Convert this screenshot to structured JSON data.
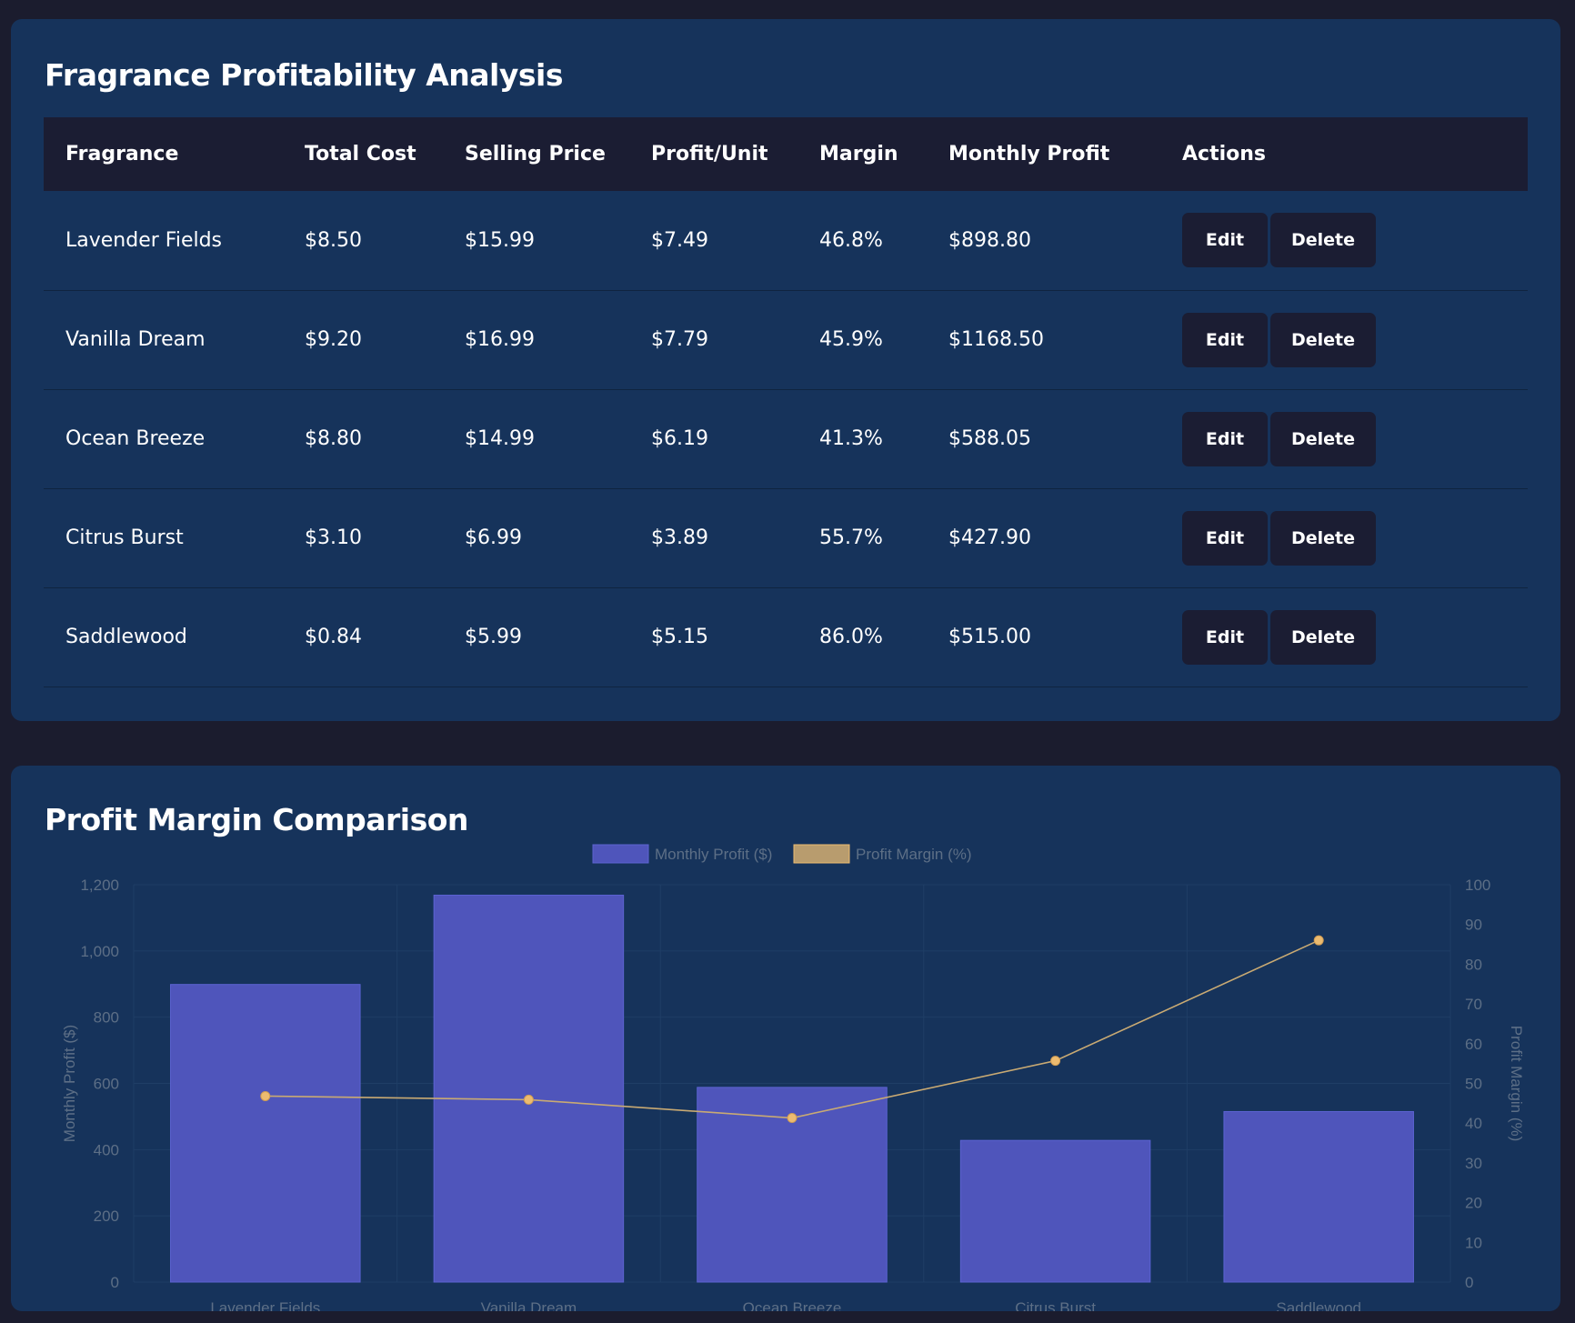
{
  "table_section": {
    "title": "Fragrance Profitability Analysis",
    "columns": [
      "Fragrance",
      "Total Cost",
      "Selling Price",
      "Profit/Unit",
      "Margin",
      "Monthly Profit",
      "Actions"
    ],
    "rows": [
      {
        "name": "Lavender Fields",
        "cost": "$8.50",
        "price": "$15.99",
        "profit_unit": "$7.49",
        "margin": "46.8%",
        "monthly": "$898.80"
      },
      {
        "name": "Vanilla Dream",
        "cost": "$9.20",
        "price": "$16.99",
        "profit_unit": "$7.79",
        "margin": "45.9%",
        "monthly": "$1168.50"
      },
      {
        "name": "Ocean Breeze",
        "cost": "$8.80",
        "price": "$14.99",
        "profit_unit": "$6.19",
        "margin": "41.3%",
        "monthly": "$588.05"
      },
      {
        "name": "Citrus Burst",
        "cost": "$3.10",
        "price": "$6.99",
        "profit_unit": "$3.89",
        "margin": "55.7%",
        "monthly": "$427.90"
      },
      {
        "name": "Saddlewood",
        "cost": "$0.84",
        "price": "$5.99",
        "profit_unit": "$5.15",
        "margin": "86.0%",
        "monthly": "$515.00"
      }
    ],
    "edit_label": "Edit",
    "delete_label": "Delete"
  },
  "chart_section": {
    "title": "Profit Margin Comparison"
  },
  "colors": {
    "page_bg": "#1b1c2e",
    "card_bg": "#16335b",
    "header_bg": "#1b1d33",
    "positive": "#4bc395",
    "bar": "#4f55bb",
    "line": "#c9aa73",
    "point": "#ecbb70"
  },
  "chart_data": {
    "type": "bar",
    "categories": [
      "Lavender Fields",
      "Vanilla Dream",
      "Ocean Breeze",
      "Citrus Burst",
      "Saddlewood"
    ],
    "series": [
      {
        "name": "Monthly Profit ($)",
        "type": "bar",
        "axis": "left",
        "values": [
          898.8,
          1168.5,
          588.05,
          427.9,
          515.0
        ]
      },
      {
        "name": "Profit Margin (%)",
        "type": "line",
        "axis": "right",
        "values": [
          46.8,
          45.9,
          41.3,
          55.7,
          86.0
        ]
      }
    ],
    "ylabel": "Monthly Profit ($)",
    "y2label": "Profit Margin (%)",
    "ylim": [
      0,
      1200
    ],
    "y2lim": [
      0,
      100
    ],
    "yticks": [
      "0",
      "200",
      "400",
      "600",
      "800",
      "1,000",
      "1,200"
    ],
    "y2ticks": [
      "0",
      "10",
      "20",
      "30",
      "40",
      "50",
      "60",
      "70",
      "80",
      "90",
      "100"
    ],
    "legend_position": "top",
    "grid": true
  }
}
